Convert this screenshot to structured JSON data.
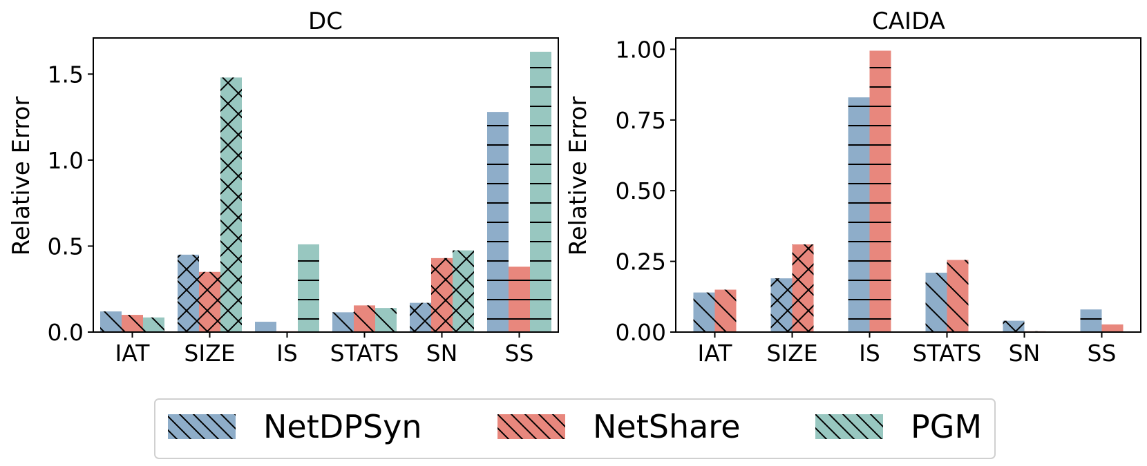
{
  "chart_data": [
    {
      "type": "bar",
      "title": "DC",
      "xlabel": "",
      "ylabel": "Relative Error",
      "categories": [
        "IAT",
        "SIZE",
        "IS",
        "STATS",
        "SN",
        "SS"
      ],
      "ylim": [
        0,
        1.71
      ],
      "yticks": [
        0.0,
        0.5,
        1.0,
        1.5
      ],
      "ytick_labels": [
        "0.0",
        "0.5",
        "1.0",
        "1.5"
      ],
      "series": [
        {
          "name": "NetDPSyn",
          "values": [
            0.12,
            0.45,
            0.06,
            0.115,
            0.17,
            1.28
          ]
        },
        {
          "name": "NetShare",
          "values": [
            0.1,
            0.35,
            0.005,
            0.155,
            0.43,
            0.38
          ]
        },
        {
          "name": "PGM",
          "values": [
            0.085,
            1.48,
            0.51,
            0.14,
            0.475,
            1.63
          ]
        }
      ],
      "hatch_by_category": [
        "diag",
        "cross",
        "horiz",
        "diag",
        "cross",
        "horiz"
      ]
    },
    {
      "type": "bar",
      "title": "CAIDA",
      "xlabel": "",
      "ylabel": "Relative Error",
      "categories": [
        "IAT",
        "SIZE",
        "IS",
        "STATS",
        "SN",
        "SS"
      ],
      "ylim": [
        0,
        1.04
      ],
      "yticks": [
        0.0,
        0.25,
        0.5,
        0.75,
        1.0
      ],
      "ytick_labels": [
        "0.00",
        "0.25",
        "0.50",
        "0.75",
        "1.00"
      ],
      "series": [
        {
          "name": "NetDPSyn",
          "values": [
            0.14,
            0.19,
            0.83,
            0.21,
            0.04,
            0.08
          ]
        },
        {
          "name": "NetShare",
          "values": [
            0.15,
            0.31,
            0.995,
            0.255,
            0.003,
            0.027
          ]
        }
      ],
      "hatch_by_category": [
        "diag",
        "cross",
        "horiz",
        "diag",
        "cross",
        "horiz"
      ]
    }
  ],
  "legend": {
    "placement": "bottom-center",
    "items": [
      {
        "label": "NetDPSyn",
        "color": "#8eadc9"
      },
      {
        "label": "NetShare",
        "color": "#e8877d"
      },
      {
        "label": "PGM",
        "color": "#98c7c0"
      }
    ]
  },
  "colors": {
    "NetDPSyn": "#8eadc9",
    "NetShare": "#e8877d",
    "PGM": "#98c7c0"
  }
}
